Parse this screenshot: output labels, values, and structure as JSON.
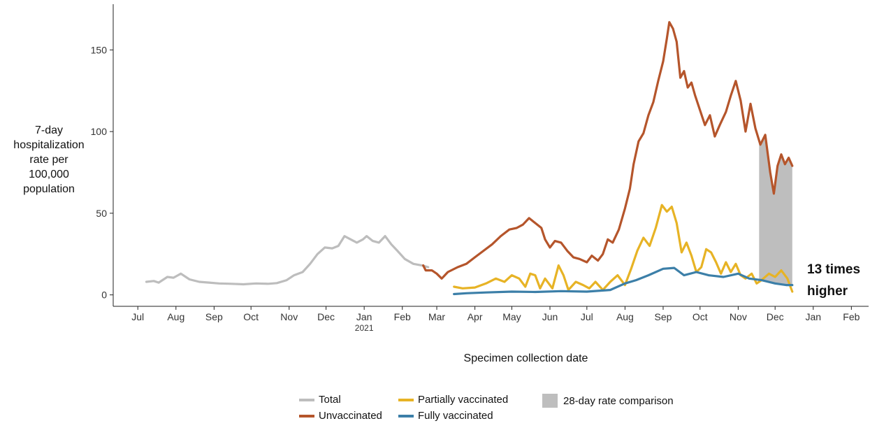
{
  "chart_data": {
    "type": "line",
    "title": "",
    "ylabel_lines": [
      "7-day",
      "hospitalization",
      "rate per",
      "100,000",
      "population"
    ],
    "xlabel": "Specimen collection date",
    "ylim": [
      -7,
      178
    ],
    "xlim": [
      "2020-06-11",
      "2022-02-15"
    ],
    "y_ticks": [
      0,
      50,
      100,
      150
    ],
    "x_ticks": [
      {
        "date": "2020-07-01",
        "label": "Jul"
      },
      {
        "date": "2020-08-01",
        "label": "Aug"
      },
      {
        "date": "2020-09-01",
        "label": "Sep"
      },
      {
        "date": "2020-10-01",
        "label": "Oct"
      },
      {
        "date": "2020-11-01",
        "label": "Nov"
      },
      {
        "date": "2020-12-01",
        "label": "Dec"
      },
      {
        "date": "2021-01-01",
        "label": "Jan",
        "sublabel": "2021"
      },
      {
        "date": "2021-02-01",
        "label": "Feb"
      },
      {
        "date": "2021-03-01",
        "label": "Mar"
      },
      {
        "date": "2021-04-01",
        "label": "Apr"
      },
      {
        "date": "2021-05-01",
        "label": "May"
      },
      {
        "date": "2021-06-01",
        "label": "Jun"
      },
      {
        "date": "2021-07-01",
        "label": "Jul"
      },
      {
        "date": "2021-08-01",
        "label": "Aug"
      },
      {
        "date": "2021-09-01",
        "label": "Sep"
      },
      {
        "date": "2021-10-01",
        "label": "Oct"
      },
      {
        "date": "2021-11-01",
        "label": "Nov"
      },
      {
        "date": "2021-12-01",
        "label": "Dec"
      },
      {
        "date": "2022-01-01",
        "label": "Jan"
      },
      {
        "date": "2022-02-01",
        "label": "Feb"
      }
    ],
    "grid": false,
    "legend_position": "bottom",
    "shaded_region": {
      "name": "28-day rate comparison",
      "start": "2021-11-18",
      "end": "2021-12-15",
      "color": "#bebebe"
    },
    "annotation_lines": [
      "13 times",
      "higher"
    ],
    "series": [
      {
        "name": "Total",
        "color": "#bdbdbd",
        "points": [
          [
            "2020-07-08",
            8
          ],
          [
            "2020-07-14",
            8.5
          ],
          [
            "2020-07-18",
            7.5
          ],
          [
            "2020-07-25",
            11
          ],
          [
            "2020-07-30",
            10.5
          ],
          [
            "2020-08-05",
            13
          ],
          [
            "2020-08-12",
            9.5
          ],
          [
            "2020-08-20",
            8
          ],
          [
            "2020-08-28",
            7.5
          ],
          [
            "2020-09-05",
            7
          ],
          [
            "2020-09-15",
            6.8
          ],
          [
            "2020-09-25",
            6.5
          ],
          [
            "2020-10-05",
            7
          ],
          [
            "2020-10-15",
            6.8
          ],
          [
            "2020-10-22",
            7.2
          ],
          [
            "2020-10-30",
            9
          ],
          [
            "2020-11-05",
            12
          ],
          [
            "2020-11-12",
            14
          ],
          [
            "2020-11-18",
            19
          ],
          [
            "2020-11-24",
            25
          ],
          [
            "2020-11-30",
            29
          ],
          [
            "2020-12-06",
            28.5
          ],
          [
            "2020-12-11",
            30
          ],
          [
            "2020-12-16",
            36
          ],
          [
            "2020-12-21",
            34
          ],
          [
            "2020-12-26",
            32
          ],
          [
            "2020-12-31",
            34
          ],
          [
            "2021-01-03",
            36
          ],
          [
            "2021-01-08",
            33
          ],
          [
            "2021-01-13",
            32
          ],
          [
            "2021-01-18",
            36
          ],
          [
            "2021-01-23",
            31
          ],
          [
            "2021-01-28",
            27
          ],
          [
            "2021-02-03",
            22
          ],
          [
            "2021-02-10",
            19
          ],
          [
            "2021-02-17",
            18
          ],
          [
            "2021-02-22",
            17
          ]
        ]
      },
      {
        "name": "Unvaccinated",
        "color": "#b5552b",
        "points": [
          [
            "2021-02-18",
            18
          ],
          [
            "2021-02-20",
            15
          ],
          [
            "2021-02-25",
            15
          ],
          [
            "2021-03-01",
            13
          ],
          [
            "2021-03-05",
            10
          ],
          [
            "2021-03-10",
            14
          ],
          [
            "2021-03-18",
            17
          ],
          [
            "2021-03-25",
            19
          ],
          [
            "2021-04-01",
            23
          ],
          [
            "2021-04-08",
            27
          ],
          [
            "2021-04-15",
            31
          ],
          [
            "2021-04-22",
            36
          ],
          [
            "2021-04-29",
            40
          ],
          [
            "2021-05-05",
            41
          ],
          [
            "2021-05-10",
            43
          ],
          [
            "2021-05-15",
            47
          ],
          [
            "2021-05-20",
            44
          ],
          [
            "2021-05-25",
            41
          ],
          [
            "2021-05-28",
            34
          ],
          [
            "2021-06-01",
            29
          ],
          [
            "2021-06-05",
            33
          ],
          [
            "2021-06-10",
            32
          ],
          [
            "2021-06-15",
            27
          ],
          [
            "2021-06-20",
            23
          ],
          [
            "2021-06-25",
            22
          ],
          [
            "2021-07-01",
            20
          ],
          [
            "2021-07-05",
            24
          ],
          [
            "2021-07-10",
            21
          ],
          [
            "2021-07-14",
            25
          ],
          [
            "2021-07-18",
            34
          ],
          [
            "2021-07-22",
            32
          ],
          [
            "2021-07-27",
            40
          ],
          [
            "2021-08-01",
            53
          ],
          [
            "2021-08-05",
            65
          ],
          [
            "2021-08-08",
            80
          ],
          [
            "2021-08-12",
            94
          ],
          [
            "2021-08-16",
            99
          ],
          [
            "2021-08-20",
            110
          ],
          [
            "2021-08-24",
            118
          ],
          [
            "2021-08-28",
            131
          ],
          [
            "2021-09-01",
            143
          ],
          [
            "2021-09-04",
            157
          ],
          [
            "2021-09-06",
            167
          ],
          [
            "2021-09-09",
            163
          ],
          [
            "2021-09-12",
            155
          ],
          [
            "2021-09-15",
            133
          ],
          [
            "2021-09-18",
            137
          ],
          [
            "2021-09-21",
            127
          ],
          [
            "2021-09-24",
            130
          ],
          [
            "2021-09-27",
            122
          ],
          [
            "2021-10-01",
            113
          ],
          [
            "2021-10-05",
            104
          ],
          [
            "2021-10-09",
            110
          ],
          [
            "2021-10-13",
            97
          ],
          [
            "2021-10-17",
            104
          ],
          [
            "2021-10-22",
            112
          ],
          [
            "2021-10-26",
            122
          ],
          [
            "2021-10-30",
            131
          ],
          [
            "2021-11-03",
            119
          ],
          [
            "2021-11-07",
            100
          ],
          [
            "2021-11-11",
            117
          ],
          [
            "2021-11-15",
            102
          ],
          [
            "2021-11-19",
            92
          ],
          [
            "2021-11-23",
            98
          ],
          [
            "2021-11-27",
            75
          ],
          [
            "2021-11-30",
            62
          ],
          [
            "2021-12-03",
            79
          ],
          [
            "2021-12-06",
            86
          ],
          [
            "2021-12-09",
            80
          ],
          [
            "2021-12-12",
            84
          ],
          [
            "2021-12-15",
            79
          ]
        ]
      },
      {
        "name": "Partially vaccinated",
        "color": "#e7b325",
        "points": [
          [
            "2021-03-15",
            5
          ],
          [
            "2021-03-22",
            4
          ],
          [
            "2021-04-01",
            4.5
          ],
          [
            "2021-04-10",
            7
          ],
          [
            "2021-04-18",
            10
          ],
          [
            "2021-04-25",
            8
          ],
          [
            "2021-05-01",
            12
          ],
          [
            "2021-05-07",
            10
          ],
          [
            "2021-05-12",
            5
          ],
          [
            "2021-05-16",
            13
          ],
          [
            "2021-05-20",
            12
          ],
          [
            "2021-05-24",
            4
          ],
          [
            "2021-05-28",
            10
          ],
          [
            "2021-06-03",
            4
          ],
          [
            "2021-06-08",
            18
          ],
          [
            "2021-06-12",
            12
          ],
          [
            "2021-06-16",
            3
          ],
          [
            "2021-06-22",
            8
          ],
          [
            "2021-06-28",
            6
          ],
          [
            "2021-07-03",
            4
          ],
          [
            "2021-07-08",
            8
          ],
          [
            "2021-07-14",
            3
          ],
          [
            "2021-07-20",
            8
          ],
          [
            "2021-07-26",
            12
          ],
          [
            "2021-08-01",
            6
          ],
          [
            "2021-08-06",
            16
          ],
          [
            "2021-08-11",
            27
          ],
          [
            "2021-08-16",
            35
          ],
          [
            "2021-08-21",
            30
          ],
          [
            "2021-08-26",
            41
          ],
          [
            "2021-08-31",
            55
          ],
          [
            "2021-09-04",
            51
          ],
          [
            "2021-09-08",
            54
          ],
          [
            "2021-09-12",
            44
          ],
          [
            "2021-09-16",
            26
          ],
          [
            "2021-09-20",
            32
          ],
          [
            "2021-09-24",
            24
          ],
          [
            "2021-09-28",
            14
          ],
          [
            "2021-10-02",
            17
          ],
          [
            "2021-10-06",
            28
          ],
          [
            "2021-10-10",
            26
          ],
          [
            "2021-10-14",
            20
          ],
          [
            "2021-10-18",
            13
          ],
          [
            "2021-10-22",
            20
          ],
          [
            "2021-10-26",
            14
          ],
          [
            "2021-10-30",
            19
          ],
          [
            "2021-11-03",
            12
          ],
          [
            "2021-11-07",
            10
          ],
          [
            "2021-11-12",
            13
          ],
          [
            "2021-11-16",
            7
          ],
          [
            "2021-11-20",
            9
          ],
          [
            "2021-11-26",
            13
          ],
          [
            "2021-12-01",
            11
          ],
          [
            "2021-12-06",
            15
          ],
          [
            "2021-12-11",
            10
          ],
          [
            "2021-12-15",
            2
          ]
        ]
      },
      {
        "name": "Fully vaccinated",
        "color": "#3c7fa8",
        "points": [
          [
            "2021-03-15",
            0.5
          ],
          [
            "2021-03-25",
            1
          ],
          [
            "2021-04-10",
            1.5
          ],
          [
            "2021-05-01",
            2
          ],
          [
            "2021-05-20",
            1.8
          ],
          [
            "2021-06-10",
            2.3
          ],
          [
            "2021-07-01",
            2
          ],
          [
            "2021-07-20",
            3
          ],
          [
            "2021-08-01",
            7
          ],
          [
            "2021-08-10",
            9
          ],
          [
            "2021-08-20",
            12
          ],
          [
            "2021-09-01",
            16
          ],
          [
            "2021-09-10",
            16.5
          ],
          [
            "2021-09-18",
            12
          ],
          [
            "2021-09-28",
            14
          ],
          [
            "2021-10-08",
            12
          ],
          [
            "2021-10-20",
            11
          ],
          [
            "2021-11-01",
            13
          ],
          [
            "2021-11-10",
            10
          ],
          [
            "2021-11-20",
            9
          ],
          [
            "2021-12-01",
            7
          ],
          [
            "2021-12-10",
            6
          ],
          [
            "2021-12-15",
            6
          ]
        ]
      }
    ]
  }
}
